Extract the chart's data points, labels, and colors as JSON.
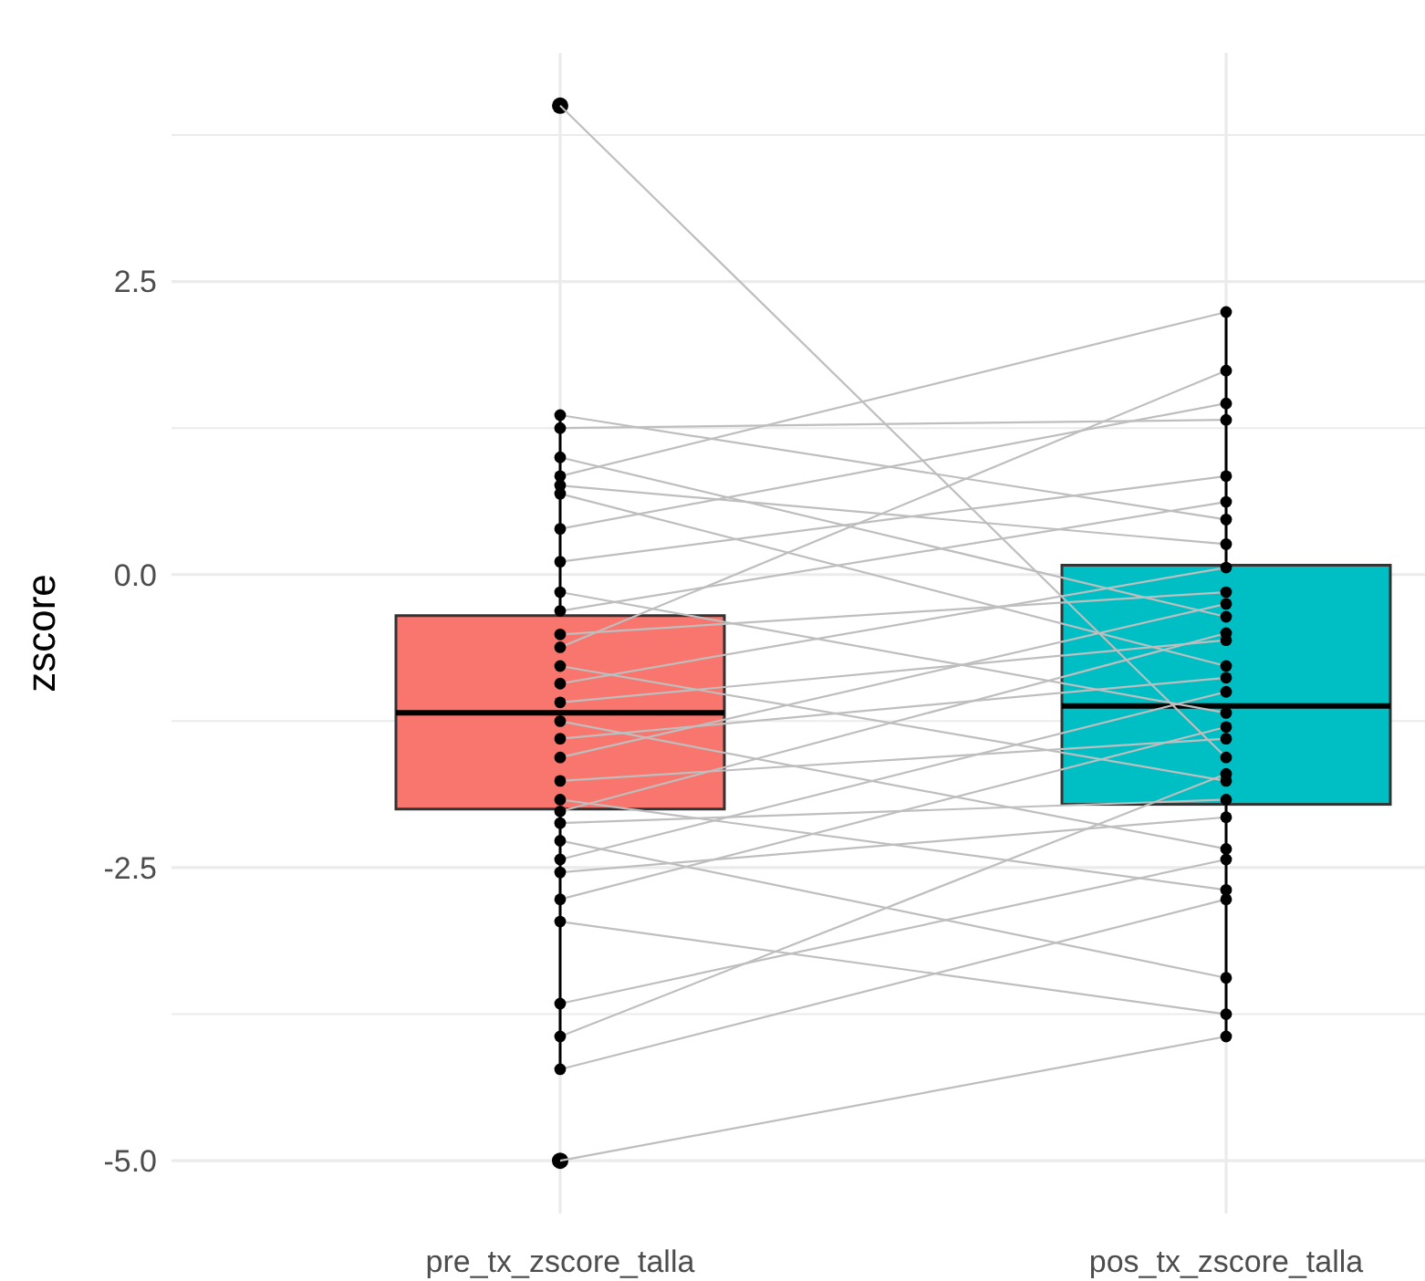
{
  "chart_data": {
    "type": "box",
    "ylabel": "zscore",
    "categories": [
      "pre_tx_zscore_talla",
      "pos_tx_zscore_talla"
    ],
    "colors": [
      "#f8766d",
      "#00bfc4"
    ],
    "boxes": [
      {
        "low": -4.22,
        "q1": -2.0,
        "median": -1.18,
        "q3": -0.35,
        "high": 1.36,
        "outliers": [
          4.0,
          -5.0
        ]
      },
      {
        "low": -3.94,
        "q1": -1.96,
        "median": -1.12,
        "q3": 0.08,
        "high": 2.24
      }
    ],
    "ylim": [
      -5.45,
      4.45
    ],
    "yticks": [
      {
        "value": 3.75,
        "label": null
      },
      2.5,
      {
        "value": 1.25,
        "label": null
      },
      {
        "value": 0,
        "label": "0.0"
      },
      {
        "value": -1.25,
        "label": null
      },
      -2.5,
      {
        "value": -3.75,
        "label": null
      },
      {
        "value": -5,
        "label": "-5.0"
      }
    ],
    "grid": true,
    "series": [
      {
        "type": "line",
        "x": [
          "pre_tx_zscore_talla",
          "pos_tx_zscore_talla"
        ],
        "values": [
          1.36,
          0.47
        ],
        "color": "#bebebe",
        "marker": "none"
      },
      {
        "type": "line",
        "x": [
          "pre_tx_zscore_talla",
          "pos_tx_zscore_talla"
        ],
        "values": [
          1.25,
          1.32
        ],
        "color": "#bebebe",
        "marker": "none"
      },
      {
        "type": "line",
        "x": [
          "pre_tx_zscore_talla",
          "pos_tx_zscore_talla"
        ],
        "values": [
          1.0,
          -0.36
        ],
        "color": "#bebebe",
        "marker": "none"
      },
      {
        "type": "line",
        "x": [
          "pre_tx_zscore_talla",
          "pos_tx_zscore_talla"
        ],
        "values": [
          0.84,
          2.24
        ],
        "color": "#bebebe",
        "marker": "none"
      },
      {
        "type": "line",
        "x": [
          "pre_tx_zscore_talla",
          "pos_tx_zscore_talla"
        ],
        "values": [
          0.76,
          0.26
        ],
        "color": "#bebebe",
        "marker": "none"
      },
      {
        "type": "line",
        "x": [
          "pre_tx_zscore_talla",
          "pos_tx_zscore_talla"
        ],
        "values": [
          0.69,
          -0.78
        ],
        "color": "#bebebe",
        "marker": "none"
      },
      {
        "type": "line",
        "x": [
          "pre_tx_zscore_talla",
          "pos_tx_zscore_talla"
        ],
        "values": [
          0.39,
          1.46
        ],
        "color": "#bebebe",
        "marker": "none"
      },
      {
        "type": "line",
        "x": [
          "pre_tx_zscore_talla",
          "pos_tx_zscore_talla"
        ],
        "values": [
          0.11,
          0.84
        ],
        "color": "#bebebe",
        "marker": "none"
      },
      {
        "type": "line",
        "x": [
          "pre_tx_zscore_talla",
          "pos_tx_zscore_talla"
        ],
        "values": [
          -0.15,
          -1.18
        ],
        "color": "#bebebe",
        "marker": "none"
      },
      {
        "type": "line",
        "x": [
          "pre_tx_zscore_talla",
          "pos_tx_zscore_talla"
        ],
        "values": [
          -0.31,
          0.62
        ],
        "color": "#bebebe",
        "marker": "none"
      },
      {
        "type": "line",
        "x": [
          "pre_tx_zscore_talla",
          "pos_tx_zscore_talla"
        ],
        "values": [
          -0.51,
          -0.15
        ],
        "color": "#bebebe",
        "marker": "none"
      },
      {
        "type": "line",
        "x": [
          "pre_tx_zscore_talla",
          "pos_tx_zscore_talla"
        ],
        "values": [
          -0.62,
          1.74
        ],
        "color": "#bebebe",
        "marker": "none"
      },
      {
        "type": "line",
        "x": [
          "pre_tx_zscore_talla",
          "pos_tx_zscore_talla"
        ],
        "values": [
          -0.78,
          -1.76
        ],
        "color": "#bebebe",
        "marker": "none"
      },
      {
        "type": "line",
        "x": [
          "pre_tx_zscore_talla",
          "pos_tx_zscore_talla"
        ],
        "values": [
          -0.93,
          0.06
        ],
        "color": "#bebebe",
        "marker": "none"
      },
      {
        "type": "line",
        "x": [
          "pre_tx_zscore_talla",
          "pos_tx_zscore_talla"
        ],
        "values": [
          -1.09,
          -0.56
        ],
        "color": "#bebebe",
        "marker": "none"
      },
      {
        "type": "line",
        "x": [
          "pre_tx_zscore_talla",
          "pos_tx_zscore_talla"
        ],
        "values": [
          -1.25,
          -2.34
        ],
        "color": "#bebebe",
        "marker": "none"
      },
      {
        "type": "line",
        "x": [
          "pre_tx_zscore_talla",
          "pos_tx_zscore_talla"
        ],
        "values": [
          -1.4,
          -0.88
        ],
        "color": "#bebebe",
        "marker": "none"
      },
      {
        "type": "line",
        "x": [
          "pre_tx_zscore_talla",
          "pos_tx_zscore_talla"
        ],
        "values": [
          -1.56,
          -0.25
        ],
        "color": "#bebebe",
        "marker": "none"
      },
      {
        "type": "line",
        "x": [
          "pre_tx_zscore_talla",
          "pos_tx_zscore_talla"
        ],
        "values": [
          -1.76,
          -1.4
        ],
        "color": "#bebebe",
        "marker": "none"
      },
      {
        "type": "line",
        "x": [
          "pre_tx_zscore_talla",
          "pos_tx_zscore_talla"
        ],
        "values": [
          -1.92,
          -2.69
        ],
        "color": "#bebebe",
        "marker": "none"
      },
      {
        "type": "line",
        "x": [
          "pre_tx_zscore_talla",
          "pos_tx_zscore_talla"
        ],
        "values": [
          -2.02,
          -0.5
        ],
        "color": "#bebebe",
        "marker": "none"
      },
      {
        "type": "line",
        "x": [
          "pre_tx_zscore_talla",
          "pos_tx_zscore_talla"
        ],
        "values": [
          -2.12,
          -1.92
        ],
        "color": "#bebebe",
        "marker": "none"
      },
      {
        "type": "line",
        "x": [
          "pre_tx_zscore_talla",
          "pos_tx_zscore_talla"
        ],
        "values": [
          -2.27,
          -3.44
        ],
        "color": "#bebebe",
        "marker": "none"
      },
      {
        "type": "line",
        "x": [
          "pre_tx_zscore_talla",
          "pos_tx_zscore_talla"
        ],
        "values": [
          -2.43,
          -1.0
        ],
        "color": "#bebebe",
        "marker": "none"
      },
      {
        "type": "line",
        "x": [
          "pre_tx_zscore_talla",
          "pos_tx_zscore_talla"
        ],
        "values": [
          -2.54,
          -2.07
        ],
        "color": "#bebebe",
        "marker": "none"
      },
      {
        "type": "line",
        "x": [
          "pre_tx_zscore_talla",
          "pos_tx_zscore_talla"
        ],
        "values": [
          -2.77,
          -1.3
        ],
        "color": "#bebebe",
        "marker": "none"
      },
      {
        "type": "line",
        "x": [
          "pre_tx_zscore_talla",
          "pos_tx_zscore_talla"
        ],
        "values": [
          -2.96,
          -3.75
        ],
        "color": "#bebebe",
        "marker": "none"
      },
      {
        "type": "line",
        "x": [
          "pre_tx_zscore_talla",
          "pos_tx_zscore_talla"
        ],
        "values": [
          -3.66,
          -2.43
        ],
        "color": "#bebebe",
        "marker": "none"
      },
      {
        "type": "line",
        "x": [
          "pre_tx_zscore_talla",
          "pos_tx_zscore_talla"
        ],
        "values": [
          -3.94,
          -1.7
        ],
        "color": "#bebebe",
        "marker": "none"
      },
      {
        "type": "line",
        "x": [
          "pre_tx_zscore_talla",
          "pos_tx_zscore_talla"
        ],
        "values": [
          -4.22,
          -2.77
        ],
        "color": "#bebebe",
        "marker": "none"
      },
      {
        "type": "line",
        "x": [
          "pre_tx_zscore_talla",
          "pos_tx_zscore_talla"
        ],
        "values": [
          4.0,
          -1.56
        ],
        "color": "#bebebe",
        "marker": "none"
      },
      {
        "type": "line",
        "x": [
          "pre_tx_zscore_talla",
          "pos_tx_zscore_talla"
        ],
        "values": [
          -5.0,
          -3.94
        ],
        "color": "#bebebe",
        "marker": "none"
      },
      {
        "type": "scatter",
        "x": [
          "pre_tx_zscore_talla",
          "pre_tx_zscore_talla",
          "pre_tx_zscore_talla",
          "pre_tx_zscore_talla",
          "pre_tx_zscore_talla",
          "pre_tx_zscore_talla",
          "pre_tx_zscore_talla",
          "pre_tx_zscore_talla",
          "pre_tx_zscore_talla",
          "pre_tx_zscore_talla",
          "pre_tx_zscore_talla",
          "pre_tx_zscore_talla",
          "pre_tx_zscore_talla",
          "pre_tx_zscore_talla",
          "pre_tx_zscore_talla",
          "pre_tx_zscore_talla",
          "pre_tx_zscore_talla",
          "pre_tx_zscore_talla",
          "pre_tx_zscore_talla",
          "pre_tx_zscore_talla",
          "pre_tx_zscore_talla",
          "pre_tx_zscore_talla",
          "pre_tx_zscore_talla",
          "pre_tx_zscore_talla",
          "pre_tx_zscore_talla",
          "pre_tx_zscore_talla",
          "pre_tx_zscore_talla",
          "pre_tx_zscore_talla",
          "pre_tx_zscore_talla",
          "pre_tx_zscore_talla"
        ],
        "values": [
          1.36,
          1.25,
          1.0,
          0.84,
          0.76,
          0.69,
          0.39,
          0.11,
          -0.15,
          -0.31,
          -0.51,
          -0.62,
          -0.78,
          -0.93,
          -1.09,
          -1.25,
          -1.4,
          -1.56,
          -1.76,
          -1.92,
          -2.02,
          -2.12,
          -2.27,
          -2.43,
          -2.54,
          -2.77,
          -2.96,
          -3.66,
          -3.94,
          -4.22
        ],
        "color": "#000000",
        "marker": "circle"
      },
      {
        "type": "scatter",
        "x": [
          "pos_tx_zscore_talla",
          "pos_tx_zscore_talla",
          "pos_tx_zscore_talla",
          "pos_tx_zscore_talla",
          "pos_tx_zscore_talla",
          "pos_tx_zscore_talla",
          "pos_tx_zscore_talla",
          "pos_tx_zscore_talla",
          "pos_tx_zscore_talla",
          "pos_tx_zscore_talla",
          "pos_tx_zscore_talla",
          "pos_tx_zscore_talla",
          "pos_tx_zscore_talla",
          "pos_tx_zscore_talla",
          "pos_tx_zscore_talla",
          "pos_tx_zscore_talla",
          "pos_tx_zscore_talla",
          "pos_tx_zscore_talla",
          "pos_tx_zscore_talla",
          "pos_tx_zscore_talla",
          "pos_tx_zscore_talla",
          "pos_tx_zscore_talla",
          "pos_tx_zscore_talla",
          "pos_tx_zscore_talla",
          "pos_tx_zscore_talla",
          "pos_tx_zscore_talla",
          "pos_tx_zscore_talla",
          "pos_tx_zscore_talla",
          "pos_tx_zscore_talla",
          "pos_tx_zscore_talla",
          "pos_tx_zscore_talla",
          "pos_tx_zscore_talla"
        ],
        "values": [
          0.47,
          1.32,
          -0.36,
          2.24,
          0.26,
          -0.78,
          1.46,
          0.84,
          -1.18,
          0.62,
          -0.15,
          1.74,
          -1.76,
          0.06,
          -0.56,
          -2.34,
          -0.88,
          -0.25,
          -1.4,
          -2.69,
          -0.5,
          -1.92,
          -3.44,
          -1.0,
          -2.07,
          -1.3,
          -3.75,
          -2.43,
          -1.7,
          -2.77,
          -1.56,
          -3.94
        ],
        "color": "#000000",
        "marker": "circle"
      }
    ]
  }
}
